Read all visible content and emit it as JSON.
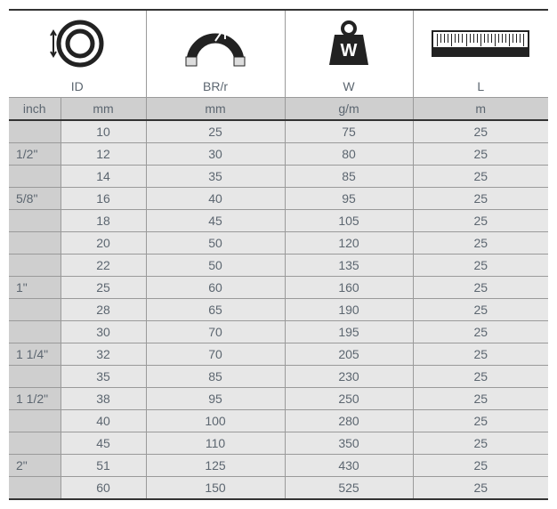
{
  "colors": {
    "header_bg": "#cfcfcf",
    "data_bg": "#e7e7e7",
    "text": "#5c6670",
    "border": "#9a9a9a",
    "border_heavy": "#333333",
    "icon_stroke": "#222222"
  },
  "iconLabels": {
    "id": "ID",
    "br": "BR/r",
    "w": "W",
    "l": "L"
  },
  "unitHeaders": {
    "inch": "inch",
    "mm1": "mm",
    "mm2": "mm",
    "gm": "g/m",
    "m": "m"
  },
  "columns": [
    "inch",
    "mm_id",
    "mm_br",
    "gm",
    "m"
  ],
  "rows": [
    {
      "inch": "",
      "mm_id": "10",
      "mm_br": "25",
      "gm": "75",
      "m": "25"
    },
    {
      "inch": "1/2\"",
      "mm_id": "12",
      "mm_br": "30",
      "gm": "80",
      "m": "25"
    },
    {
      "inch": "",
      "mm_id": "14",
      "mm_br": "35",
      "gm": "85",
      "m": "25"
    },
    {
      "inch": "5/8\"",
      "mm_id": "16",
      "mm_br": "40",
      "gm": "95",
      "m": "25"
    },
    {
      "inch": "",
      "mm_id": "18",
      "mm_br": "45",
      "gm": "105",
      "m": "25"
    },
    {
      "inch": "",
      "mm_id": "20",
      "mm_br": "50",
      "gm": "120",
      "m": "25"
    },
    {
      "inch": "",
      "mm_id": "22",
      "mm_br": "50",
      "gm": "135",
      "m": "25"
    },
    {
      "inch": "1\"",
      "mm_id": "25",
      "mm_br": "60",
      "gm": "160",
      "m": "25"
    },
    {
      "inch": "",
      "mm_id": "28",
      "mm_br": "65",
      "gm": "190",
      "m": "25"
    },
    {
      "inch": "",
      "mm_id": "30",
      "mm_br": "70",
      "gm": "195",
      "m": "25"
    },
    {
      "inch": "1 1/4\"",
      "mm_id": "32",
      "mm_br": "70",
      "gm": "205",
      "m": "25"
    },
    {
      "inch": "",
      "mm_id": "35",
      "mm_br": "85",
      "gm": "230",
      "m": "25"
    },
    {
      "inch": "1 1/2\"",
      "mm_id": "38",
      "mm_br": "95",
      "gm": "250",
      "m": "25"
    },
    {
      "inch": "",
      "mm_id": "40",
      "mm_br": "100",
      "gm": "280",
      "m": "25"
    },
    {
      "inch": "",
      "mm_id": "45",
      "mm_br": "110",
      "gm": "350",
      "m": "25"
    },
    {
      "inch": "2\"",
      "mm_id": "51",
      "mm_br": "125",
      "gm": "430",
      "m": "25"
    },
    {
      "inch": "",
      "mm_id": "60",
      "mm_br": "150",
      "gm": "525",
      "m": "25"
    }
  ]
}
